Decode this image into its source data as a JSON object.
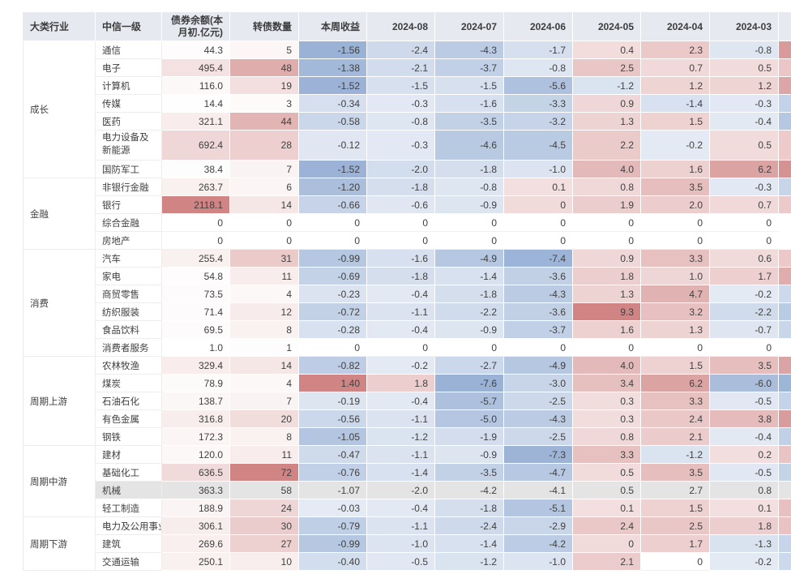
{
  "chart_data": {
    "type": "table",
    "columns": {
      "group": "大类行业",
      "industry": "中信一级",
      "balance": "债券余额(本月初.亿元)",
      "count": "转债数量",
      "week": "本周收益",
      "months": [
        "2024-08",
        "2024-07",
        "2024-06",
        "2024-05",
        "2024-04",
        "2024-03"
      ]
    },
    "groups": [
      {
        "name": "成长",
        "rows": [
          {
            "industry": "通信",
            "balance": 44.3,
            "count": 5,
            "week": -1.56,
            "months": [
              -2.4,
              -4.3,
              -1.7,
              0.4,
              2.3,
              -0.8
            ],
            "edge": "#d89a9a"
          },
          {
            "industry": "电子",
            "balance": 495.4,
            "count": 48,
            "week": -1.38,
            "months": [
              -2.1,
              -3.7,
              -0.8,
              2.5,
              0.7,
              0.5
            ],
            "edge": "#ecc6c6"
          },
          {
            "industry": "计算机",
            "balance": 116.0,
            "count": 19,
            "week": -1.52,
            "months": [
              -1.5,
              -1.5,
              -5.6,
              -1.2,
              1.2,
              1.2
            ],
            "edge": "#dca6a6"
          },
          {
            "industry": "传媒",
            "balance": 14.4,
            "count": 3,
            "week": -0.34,
            "months": [
              -0.3,
              -1.6,
              -3.3,
              0.9,
              -1.4,
              -0.3
            ],
            "edge": "#c2d2e8"
          },
          {
            "industry": "医药",
            "balance": 321.1,
            "count": 44,
            "week": -0.58,
            "months": [
              -0.8,
              -3.5,
              -3.2,
              1.3,
              1.5,
              -0.4
            ],
            "edge": "#b4c8e2"
          },
          {
            "industry": "电力设备及新能源",
            "balance": 692.4,
            "count": 28,
            "week": -0.12,
            "months": [
              -0.3,
              -4.6,
              -4.5,
              2.2,
              -0.2,
              0.5
            ],
            "edge": "#eecaca",
            "tall": true
          },
          {
            "industry": "国防军工",
            "balance": 38.4,
            "count": 7,
            "week": -1.52,
            "months": [
              -2.0,
              -1.8,
              -1.0,
              4.0,
              1.6,
              6.2
            ],
            "edge": "#d49292"
          }
        ]
      },
      {
        "name": "金融",
        "rows": [
          {
            "industry": "非银行金融",
            "balance": 263.7,
            "count": 6,
            "week": -1.2,
            "months": [
              -1.8,
              -0.8,
              0.1,
              0.8,
              3.5,
              -0.3
            ],
            "edge": "#c6d5ea"
          },
          {
            "industry": "银行",
            "balance": 2118.1,
            "count": 14,
            "week": -0.66,
            "months": [
              -0.6,
              -0.9,
              0,
              1.9,
              2.0,
              0.7
            ],
            "edge": "#eccaca",
            "pink_zero_months": [
              2
            ]
          },
          {
            "industry": "综合金融",
            "balance": 0,
            "count": 0,
            "week": 0,
            "months": [
              0,
              0,
              0,
              0,
              0,
              0
            ],
            "edge": "#ffffff"
          },
          {
            "industry": "房地产",
            "balance": 0,
            "count": 0,
            "week": 0,
            "months": [
              0,
              0,
              0,
              0,
              0,
              0
            ],
            "edge": "#ffffff"
          }
        ]
      },
      {
        "name": "消费",
        "rows": [
          {
            "industry": "汽车",
            "balance": 255.4,
            "count": 31,
            "week": -0.99,
            "months": [
              -1.6,
              -4.9,
              -7.4,
              0.9,
              3.3,
              0.6
            ],
            "edge": "#ecc8c8"
          },
          {
            "industry": "家电",
            "balance": 54.8,
            "count": 11,
            "week": -0.69,
            "months": [
              -1.8,
              -1.4,
              -3.6,
              1.8,
              1.0,
              1.7
            ],
            "edge": "#e0acac"
          },
          {
            "industry": "商贸零售",
            "balance": 73.5,
            "count": 4,
            "week": -0.23,
            "months": [
              -0.4,
              -1.8,
              -4.3,
              1.3,
              4.7,
              -0.2
            ],
            "edge": "#ccd9ec"
          },
          {
            "industry": "纺织服装",
            "balance": 71.4,
            "count": 12,
            "week": -0.72,
            "months": [
              -1.1,
              -2.2,
              -3.6,
              9.3,
              3.2,
              -2.2
            ],
            "edge": "#b8cce4"
          },
          {
            "industry": "食品饮料",
            "balance": 69.5,
            "count": 8,
            "week": -0.28,
            "months": [
              -0.4,
              -0.9,
              -3.7,
              1.6,
              1.3,
              -0.7
            ],
            "edge": "#c8d6ea"
          },
          {
            "industry": "消费者服务",
            "balance": 1.0,
            "count": 1,
            "week": 0,
            "months": [
              0,
              0,
              0,
              0,
              0,
              0
            ],
            "edge": "#ffffff"
          }
        ]
      },
      {
        "name": "周期上游",
        "rows": [
          {
            "industry": "农林牧渔",
            "balance": 329.4,
            "count": 14,
            "week": -0.82,
            "months": [
              -0.2,
              -2.7,
              -4.9,
              4.0,
              1.5,
              3.5
            ],
            "edge": "#dba4a4"
          },
          {
            "industry": "煤炭",
            "balance": 78.9,
            "count": 4,
            "week": 1.4,
            "months": [
              1.8,
              -7.6,
              -3.0,
              3.4,
              6.2,
              -6.0
            ],
            "edge": "#9cb6d8"
          },
          {
            "industry": "石油石化",
            "balance": 138.7,
            "count": 7,
            "week": -0.19,
            "months": [
              -0.4,
              -5.7,
              -2.5,
              0.3,
              3.3,
              -0.5
            ],
            "edge": "#c4d4e8"
          },
          {
            "industry": "有色金属",
            "balance": 316.8,
            "count": 20,
            "week": -0.56,
            "months": [
              -1.1,
              -5.0,
              -4.3,
              0.3,
              2.4,
              3.8
            ],
            "edge": "#d89c9c"
          },
          {
            "industry": "钢铁",
            "balance": 172.3,
            "count": 8,
            "week": -1.05,
            "months": [
              -1.2,
              -1.9,
              -2.5,
              0.8,
              2.1,
              -0.4
            ],
            "edge": "#c0d0e6"
          }
        ]
      },
      {
        "name": "周期中游",
        "rows": [
          {
            "industry": "建材",
            "balance": 120.0,
            "count": 11,
            "week": -0.47,
            "months": [
              -1.1,
              -0.9,
              -7.3,
              3.3,
              -1.2,
              0.2
            ],
            "edge": "#eac4c4"
          },
          {
            "industry": "基础化工",
            "balance": 636.5,
            "count": 72,
            "week": -0.76,
            "months": [
              -1.4,
              -3.5,
              -4.7,
              0.5,
              3.5,
              -0.5
            ],
            "edge": "#c4d4e8"
          },
          {
            "industry": "机械",
            "balance": 363.3,
            "count": 58,
            "week": -1.07,
            "months": [
              -2.0,
              -4.2,
              -4.1,
              0.5,
              2.7,
              0.8
            ],
            "edge": "#e4e4e4",
            "highlight": true
          },
          {
            "industry": "轻工制造",
            "balance": 188.9,
            "count": 24,
            "week": -0.03,
            "months": [
              -0.4,
              -1.8,
              -5.1,
              0.1,
              1.5,
              0.1
            ],
            "edge": "#e8c0c0"
          }
        ]
      },
      {
        "name": "周期下游",
        "rows": [
          {
            "industry": "电力及公用事业",
            "balance": 306.1,
            "count": 30,
            "week": -0.79,
            "months": [
              -1.1,
              -2.4,
              -2.9,
              2.4,
              2.5,
              1.8
            ],
            "edge": "#eac2c2"
          },
          {
            "industry": "建筑",
            "balance": 269.6,
            "count": 27,
            "week": -0.99,
            "months": [
              -1.0,
              -1.4,
              -4.2,
              0,
              1.7,
              -1.3
            ],
            "edge": "#c6d5ea",
            "pink_zero_months": [
              3
            ]
          },
          {
            "industry": "交通运输",
            "balance": 250.1,
            "count": 10,
            "week": -0.4,
            "months": [
              -0.5,
              -1.2,
              -1.0,
              2.1,
              0,
              -0.2
            ],
            "edge": "#cbd9ec"
          }
        ]
      }
    ],
    "colors": {
      "header_bg": "#e7e9f1",
      "header_text": "#3c3c3c",
      "body_text": "#404040",
      "red_max": "#d08484",
      "blue_max": "#9ab2d6",
      "highlight_row_bg": "#e4e4e4",
      "zero_pink_tint": 0.3,
      "scales": {
        "balance_max": 2118.1,
        "count_max": 72,
        "week_neg_max": 1.56,
        "week_pos_max": 1.4,
        "month_neg_max": 7.6,
        "month_pos_max": 9.3,
        "tint_floor": 0.25
      }
    }
  }
}
